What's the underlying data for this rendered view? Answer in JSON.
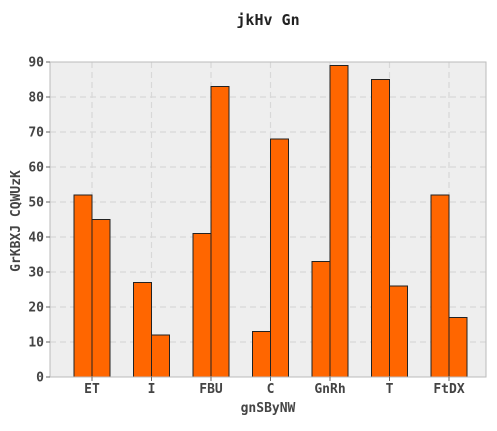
{
  "chart_data": {
    "type": "bar",
    "title": "jkHv Gn",
    "xlabel": "gnSByNW",
    "ylabel": "GrKBXJ CQWUzK",
    "categories": [
      "ET",
      "I",
      "FBU",
      "C",
      "GnRh",
      "T",
      "FtDX"
    ],
    "series": [
      {
        "values": [
          52,
          27,
          41,
          13,
          33,
          85,
          52
        ]
      },
      {
        "values": [
          45,
          12,
          83,
          68,
          89,
          26,
          17
        ]
      }
    ],
    "ylim": [
      0,
      90
    ],
    "yticks": [
      0,
      10,
      20,
      30,
      40,
      50,
      60,
      70,
      80,
      90
    ],
    "grid": true,
    "colors": {
      "bar": "#ff6600",
      "plot_background": "#eeeeee",
      "frame": "#bbbbbb"
    }
  }
}
